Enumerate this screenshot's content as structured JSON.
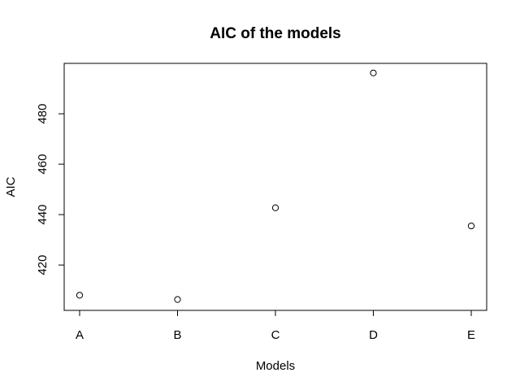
{
  "chart_data": {
    "type": "scatter",
    "title": "AIC of the models",
    "xlabel": "Models",
    "ylabel": "AIC",
    "categories": [
      "A",
      "B",
      "C",
      "D",
      "E"
    ],
    "values": [
      408.0,
      406.3,
      442.7,
      496.2,
      435.5
    ],
    "yticks": [
      420,
      440,
      460,
      480
    ],
    "ylim": [
      402.0,
      500.0
    ],
    "grid": false,
    "marker": "open-circle"
  }
}
